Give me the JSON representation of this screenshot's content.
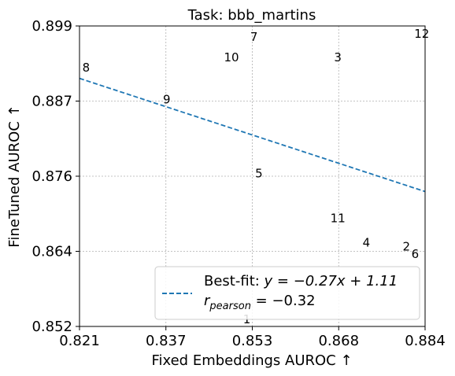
{
  "chart_data": {
    "type": "scatter",
    "title": "Task: bbb_martins",
    "xlabel": "Fixed Embeddings AUROC ↑",
    "ylabel": "FineTuned AUROC ↑",
    "xlim": [
      0.821,
      0.884
    ],
    "ylim": [
      0.852,
      0.899
    ],
    "xticks": [
      "0.821",
      "0.837",
      "0.853",
      "0.868",
      "0.884"
    ],
    "yticks": [
      "0.852",
      "0.864",
      "0.876",
      "0.887",
      "0.899"
    ],
    "grid": true,
    "points": [
      {
        "label": "1",
        "x": 0.8515,
        "y": 0.8531
      },
      {
        "label": "2",
        "x": 0.8806,
        "y": 0.8645
      },
      {
        "label": "3",
        "x": 0.8681,
        "y": 0.8941
      },
      {
        "label": "4",
        "x": 0.8733,
        "y": 0.8651
      },
      {
        "label": "5",
        "x": 0.8537,
        "y": 0.8759
      },
      {
        "label": "6",
        "x": 0.8822,
        "y": 0.8633
      },
      {
        "label": "7",
        "x": 0.8528,
        "y": 0.8973
      },
      {
        "label": "8",
        "x": 0.8222,
        "y": 0.8925
      },
      {
        "label": "9",
        "x": 0.8369,
        "y": 0.8875
      },
      {
        "label": "10",
        "x": 0.8487,
        "y": 0.8941
      },
      {
        "label": "11",
        "x": 0.8681,
        "y": 0.8689
      },
      {
        "label": "12",
        "x": 0.8834,
        "y": 0.8978
      }
    ],
    "fit_line": {
      "slope": -0.27,
      "intercept": 1.11,
      "x": [
        0.821,
        0.884
      ],
      "y": [
        0.8908,
        0.8731
      ],
      "color": "#1f77b4",
      "style": "dashed"
    },
    "legend": {
      "placement": "lower-right",
      "fit_label": "Best-fit: ",
      "fit_equation": "y = −0.27x + 1.11",
      "r_symbol": "r",
      "r_subscript": "pearson",
      "r_value": " = −0.32"
    }
  }
}
